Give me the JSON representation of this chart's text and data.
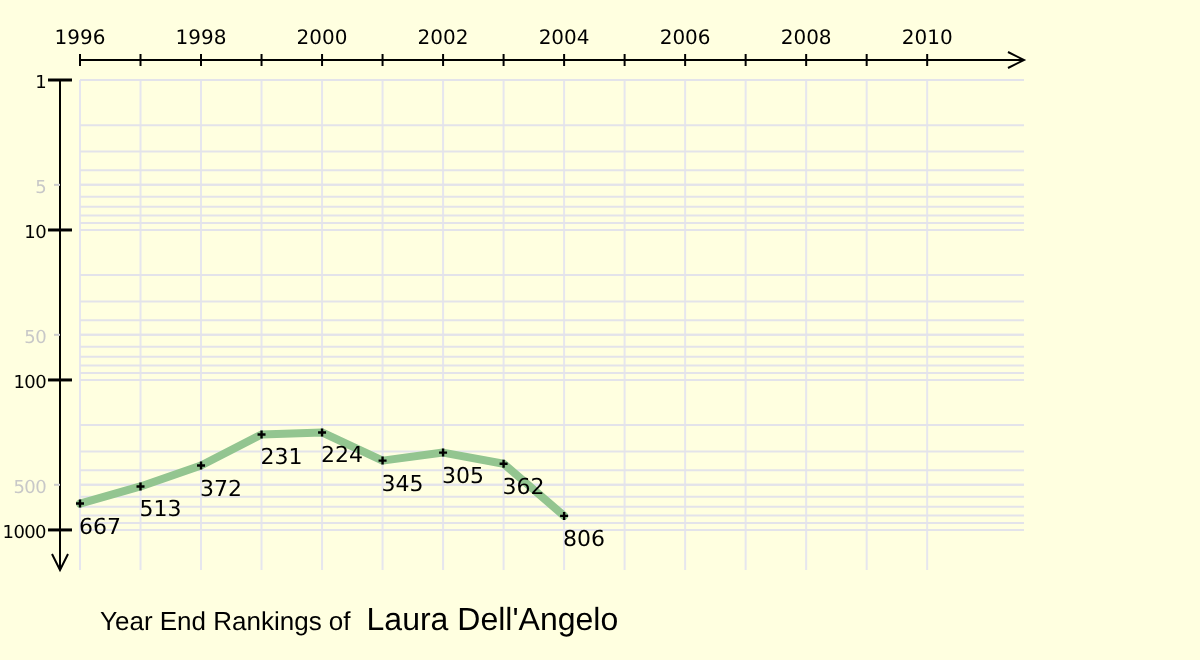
{
  "chart_data": {
    "type": "line",
    "title": "Year End Rankings of",
    "subtitle": "Laura Dell'Angelo",
    "x": [
      1996,
      1997,
      1998,
      1999,
      2000,
      2001,
      2002,
      2003,
      2004
    ],
    "series": [
      {
        "color": "#93c590",
        "values": [
          667,
          513,
          372,
          231,
          224,
          345,
          305,
          362,
          806
        ]
      }
    ],
    "log": true,
    "xlim": [
      1996,
      2011.6
    ],
    "ylim": [
      1850,
      1
    ],
    "xticks": [
      1996,
      {
        "value": 1997,
        "label": null
      },
      1998,
      {
        "value": 1999,
        "label": null
      },
      2000,
      {
        "value": 2001,
        "label": null
      },
      2002,
      {
        "value": 2003,
        "label": null
      },
      2004,
      {
        "value": 2005,
        "label": null
      },
      2006,
      {
        "value": 2007,
        "label": null
      },
      2008,
      {
        "value": 2009,
        "label": null
      },
      2010
    ],
    "yticks": [
      1,
      5,
      10,
      50,
      100,
      500,
      1000
    ],
    "grid": true,
    "marker": "cross",
    "line_style": "solid",
    "data_labels": true
  }
}
